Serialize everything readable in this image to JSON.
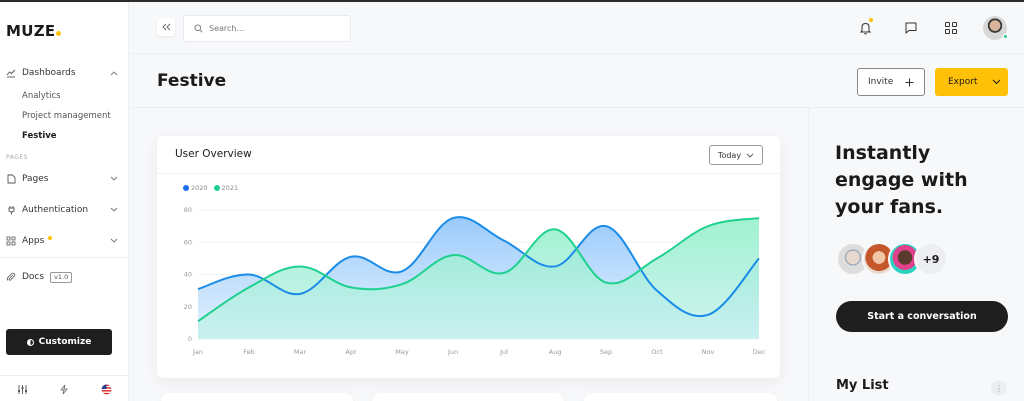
{
  "app": {
    "logo": "MUZE",
    "accent_color": "#ffc107"
  },
  "sidebar": {
    "sections": {
      "dashboards": {
        "label": "Dashboards",
        "items": [
          {
            "label": "Analytics",
            "active": false
          },
          {
            "label": "Project management",
            "active": false
          },
          {
            "label": "Festive",
            "active": true
          }
        ]
      },
      "pages_label": "PAGES",
      "nav": [
        {
          "label": "Pages",
          "icon": "file-icon"
        },
        {
          "label": "Authentication",
          "icon": "plug-icon"
        },
        {
          "label": "Apps",
          "icon": "grid-icon",
          "badge_dot": true
        }
      ],
      "docs": {
        "label": "Docs",
        "version": "v1.0"
      }
    },
    "customize_label": "Customize",
    "footer_icons": [
      "sliders-icon",
      "lightning-icon",
      "us-flag-icon"
    ]
  },
  "header": {
    "search_placeholder": "Search...",
    "icons": [
      "bell-icon",
      "chat-icon",
      "apps-grid-icon"
    ],
    "notification_dot": true,
    "user_status": "online"
  },
  "page": {
    "title": "Festive",
    "invite_label": "Invite",
    "export_label": "Export"
  },
  "user_overview": {
    "title": "User Overview",
    "filter_label": "Today"
  },
  "chart_data": {
    "type": "area",
    "title": "User Overview",
    "categories": [
      "Jan",
      "Feb",
      "Mar",
      "Apr",
      "May",
      "Jun",
      "Jul",
      "Aug",
      "Sep",
      "Oct",
      "Nov",
      "Dec"
    ],
    "series": [
      {
        "name": "2020",
        "color": "#1a73e8",
        "values": [
          31,
          40,
          28,
          51,
          42,
          75,
          61,
          45,
          70,
          30,
          15,
          50
        ]
      },
      {
        "name": "2021",
        "color": "#1fd18e",
        "values": [
          11,
          32,
          45,
          32,
          34,
          52,
          41,
          68,
          35,
          50,
          70,
          75
        ]
      }
    ],
    "yticks": [
      "0",
      "20",
      "40",
      "60",
      "80"
    ],
    "ylim": [
      0,
      80
    ],
    "xlabel": "",
    "ylabel": "",
    "grid": true,
    "legend_position": "top-left",
    "smooth": true
  },
  "promo": {
    "title": "Instantly engage with your fans.",
    "avatars_more": "+9",
    "cta_label": "Start a conversation"
  },
  "my_list": {
    "title": "My List",
    "menu_icon": "kebab-icon"
  }
}
